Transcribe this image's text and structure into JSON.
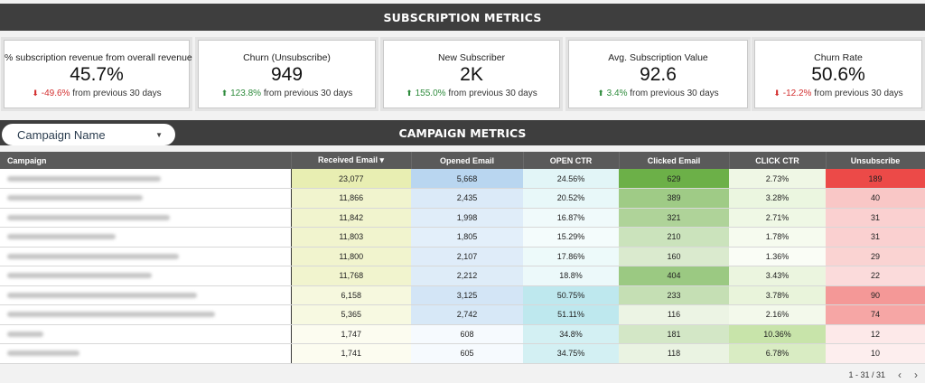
{
  "header": {
    "title": "SUBSCRIPTION METRICS"
  },
  "kpis": [
    {
      "label": "% subscription revenue from overall revenue",
      "value": "45.7%",
      "direction": "down",
      "change": "-49.6%",
      "suffix": "from previous 30 days"
    },
    {
      "label": "Churn (Unsubscribe)",
      "value": "949",
      "direction": "up",
      "change": "123.8%",
      "suffix": "from previous 30 days"
    },
    {
      "label": "New Subscriber",
      "value": "2K",
      "direction": "up",
      "change": "155.0%",
      "suffix": "from previous 30 days"
    },
    {
      "label": "Avg. Subscription Value",
      "value": "92.6",
      "direction": "up",
      "change": "3.4%",
      "suffix": "from previous 30 days"
    },
    {
      "label": "Churn Rate",
      "value": "50.6%",
      "direction": "down",
      "change": "-12.2%",
      "suffix": "from previous 30 days"
    }
  ],
  "campaign_section": {
    "title": "CAMPAIGN METRICS",
    "filter_label": "Campaign Name"
  },
  "table": {
    "columns": [
      "Campaign",
      "Received Email",
      "Opened Email",
      "OPEN CTR",
      "Clicked Email",
      "CLICK CTR",
      "Unsubscribe"
    ],
    "sort_indicator": "▾",
    "rows": [
      {
        "received": "23,077",
        "opened": "5,668",
        "open_ctr": "24.56%",
        "clicked": "629",
        "click_ctr": "2.73%",
        "unsub": "189"
      },
      {
        "received": "11,866",
        "opened": "2,435",
        "open_ctr": "20.52%",
        "clicked": "389",
        "click_ctr": "3.28%",
        "unsub": "40"
      },
      {
        "received": "11,842",
        "opened": "1,998",
        "open_ctr": "16.87%",
        "clicked": "321",
        "click_ctr": "2.71%",
        "unsub": "31"
      },
      {
        "received": "11,803",
        "opened": "1,805",
        "open_ctr": "15.29%",
        "clicked": "210",
        "click_ctr": "1.78%",
        "unsub": "31"
      },
      {
        "received": "11,800",
        "opened": "2,107",
        "open_ctr": "17.86%",
        "clicked": "160",
        "click_ctr": "1.36%",
        "unsub": "29"
      },
      {
        "received": "11,768",
        "opened": "2,212",
        "open_ctr": "18.8%",
        "clicked": "404",
        "click_ctr": "3.43%",
        "unsub": "22"
      },
      {
        "received": "6,158",
        "opened": "3,125",
        "open_ctr": "50.75%",
        "clicked": "233",
        "click_ctr": "3.78%",
        "unsub": "90"
      },
      {
        "received": "5,365",
        "opened": "2,742",
        "open_ctr": "51.11%",
        "clicked": "116",
        "click_ctr": "2.16%",
        "unsub": "74"
      },
      {
        "received": "1,747",
        "opened": "608",
        "open_ctr": "34.8%",
        "clicked": "181",
        "click_ctr": "10.36%",
        "unsub": "12"
      },
      {
        "received": "1,741",
        "opened": "605",
        "open_ctr": "34.75%",
        "clicked": "118",
        "click_ctr": "6.78%",
        "unsub": "10"
      }
    ]
  },
  "pagination": {
    "text": "1 - 31 / 31",
    "prev": "‹",
    "next": "›"
  },
  "colors": {
    "banner": "#3e3e3e",
    "header_row": "#5a5a5a",
    "negative": "#d32f2f",
    "positive": "#2e8b3c"
  }
}
